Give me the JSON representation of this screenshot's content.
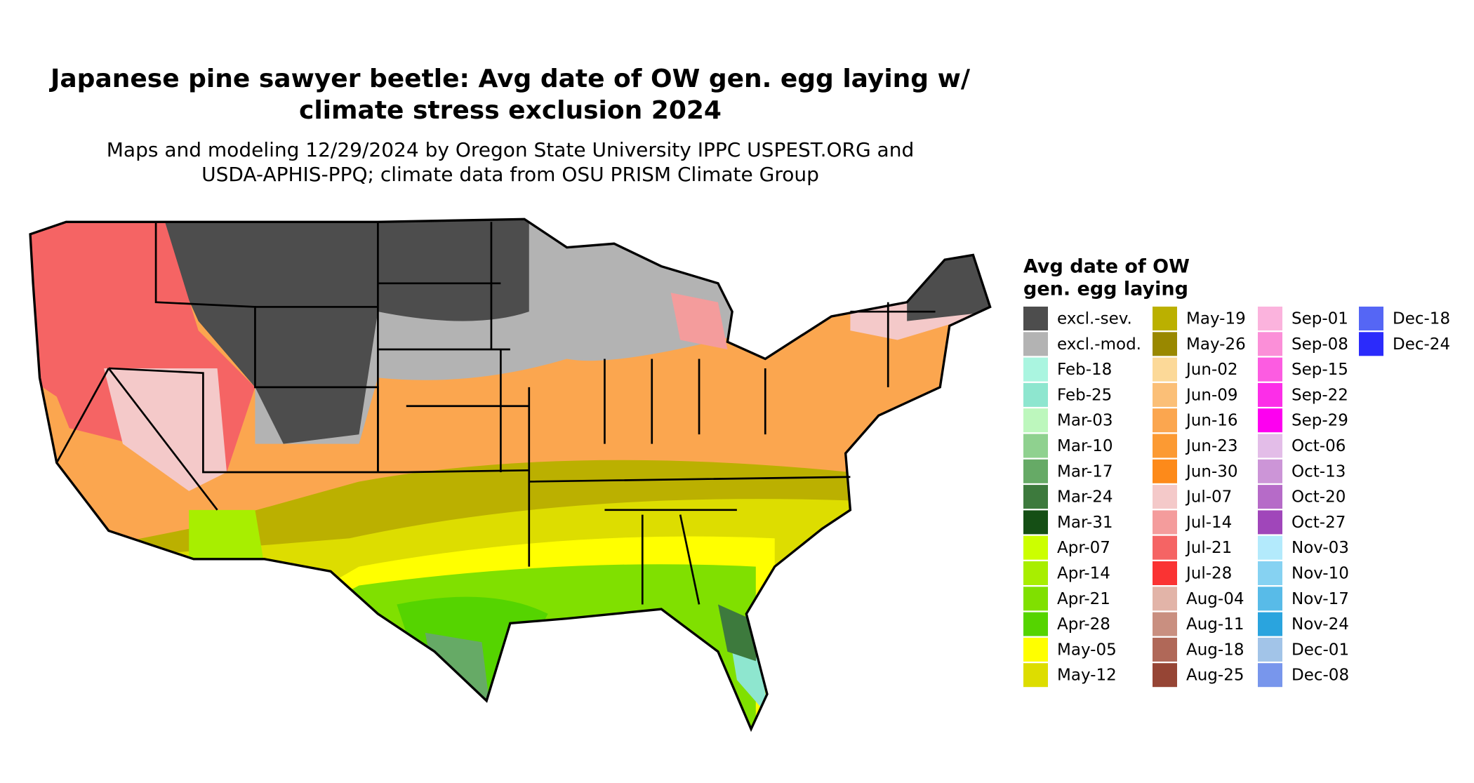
{
  "title": [
    "Japanese pine sawyer beetle: Avg date of OW gen. egg laying w/",
    "climate stress exclusion 2024"
  ],
  "subtitle": [
    "Maps and modeling 12/29/2024 by Oregon State University IPPC USPEST.ORG and",
    "USDA-APHIS-PPQ; climate data from OSU PRISM Climate Group"
  ],
  "legend": {
    "title": [
      "Avg date of OW",
      "gen. egg laying"
    ],
    "columns": [
      [
        {
          "label": "excl.-sev.",
          "color": "#4d4d4d"
        },
        {
          "label": "excl.-mod.",
          "color": "#b3b3b3"
        },
        {
          "label": "Feb-18",
          "color": "#aaf5e0"
        },
        {
          "label": "Feb-25",
          "color": "#8ee6cf"
        },
        {
          "label": "Mar-03",
          "color": "#bdf7bd"
        },
        {
          "label": "Mar-10",
          "color": "#8fd18f"
        },
        {
          "label": "Mar-17",
          "color": "#66aa66"
        },
        {
          "label": "Mar-24",
          "color": "#3d7a3d"
        },
        {
          "label": "Mar-31",
          "color": "#154f15"
        },
        {
          "label": "Apr-07",
          "color": "#ccff00"
        },
        {
          "label": "Apr-14",
          "color": "#a8ee00"
        },
        {
          "label": "Apr-21",
          "color": "#80e000"
        },
        {
          "label": "Apr-28",
          "color": "#55d400"
        },
        {
          "label": "May-05",
          "color": "#ffff00"
        },
        {
          "label": "May-12",
          "color": "#dddd00"
        }
      ],
      [
        {
          "label": "May-19",
          "color": "#bbb000"
        },
        {
          "label": "May-26",
          "color": "#998800"
        },
        {
          "label": "Jun-02",
          "color": "#fcd998"
        },
        {
          "label": "Jun-09",
          "color": "#fbbf77"
        },
        {
          "label": "Jun-16",
          "color": "#fba64f"
        },
        {
          "label": "Jun-23",
          "color": "#fc9a33"
        },
        {
          "label": "Jun-30",
          "color": "#fd8a1a"
        },
        {
          "label": "Jul-07",
          "color": "#f4c9c9"
        },
        {
          "label": "Jul-14",
          "color": "#f49c9c"
        },
        {
          "label": "Jul-21",
          "color": "#f56464"
        },
        {
          "label": "Jul-28",
          "color": "#fa3333"
        },
        {
          "label": "Aug-04",
          "color": "#e2b4a8"
        },
        {
          "label": "Aug-11",
          "color": "#c98f80"
        },
        {
          "label": "Aug-18",
          "color": "#b06858"
        },
        {
          "label": "Aug-25",
          "color": "#964535"
        }
      ],
      [
        {
          "label": "Sep-01",
          "color": "#fbb3dd"
        },
        {
          "label": "Sep-08",
          "color": "#fb8fd8"
        },
        {
          "label": "Sep-15",
          "color": "#fc5ce1"
        },
        {
          "label": "Sep-22",
          "color": "#fc2ee8"
        },
        {
          "label": "Sep-29",
          "color": "#fd00f0"
        },
        {
          "label": "Oct-06",
          "color": "#e3bde8"
        },
        {
          "label": "Oct-13",
          "color": "#cc95d7"
        },
        {
          "label": "Oct-20",
          "color": "#b66bc8"
        },
        {
          "label": "Oct-27",
          "color": "#a046ba"
        },
        {
          "label": "Nov-03",
          "color": "#b3eafc"
        },
        {
          "label": "Nov-10",
          "color": "#86d2f2"
        },
        {
          "label": "Nov-17",
          "color": "#58bbe8"
        },
        {
          "label": "Nov-24",
          "color": "#2aa4de"
        },
        {
          "label": "Dec-01",
          "color": "#a2c4e8"
        },
        {
          "label": "Dec-08",
          "color": "#7896ec"
        }
      ],
      [
        {
          "label": "Dec-18",
          "color": "#5566f5"
        },
        {
          "label": "Dec-24",
          "color": "#2b2bfb"
        }
      ]
    ]
  }
}
